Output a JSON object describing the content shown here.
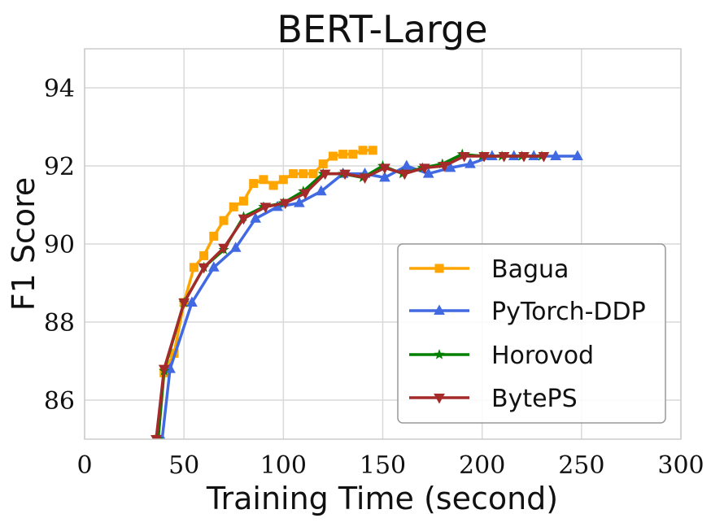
{
  "chart_data": {
    "type": "line",
    "title": "BERT-Large",
    "xlabel": "Training Time (second)",
    "ylabel": "F1 Score",
    "xlim": [
      0,
      300
    ],
    "ylim": [
      85,
      95
    ],
    "xticks": [
      0,
      50,
      100,
      150,
      200,
      250,
      300
    ],
    "yticks": [
      86,
      88,
      90,
      92,
      94
    ],
    "grid": true,
    "legend_position": "lower-right",
    "series": [
      {
        "name": "Bagua",
        "color": "#FFA500",
        "marker": "square",
        "x": [
          37,
          40,
          45,
          50,
          55,
          60,
          65,
          70,
          75,
          80,
          85,
          90,
          95,
          100,
          105,
          110,
          115,
          120,
          125,
          130,
          135,
          140,
          145
        ],
        "y": [
          85.0,
          86.7,
          87.2,
          88.5,
          89.4,
          89.7,
          90.2,
          90.6,
          90.95,
          91.1,
          91.55,
          91.65,
          91.5,
          91.65,
          91.8,
          91.8,
          91.8,
          92.05,
          92.25,
          92.3,
          92.3,
          92.4,
          92.4
        ]
      },
      {
        "name": "PyTorch-DDP",
        "color": "#4169E1",
        "marker": "triangle-up",
        "x": [
          39,
          43,
          54,
          65,
          76,
          86,
          97,
          108,
          119,
          130,
          141,
          151,
          162,
          173,
          184,
          194,
          205,
          216,
          226,
          237,
          248
        ],
        "y": [
          85.0,
          86.8,
          88.5,
          89.4,
          89.9,
          90.65,
          90.95,
          91.05,
          91.35,
          91.8,
          91.8,
          91.7,
          92.0,
          91.8,
          91.95,
          92.05,
          92.25,
          92.25,
          92.25,
          92.25,
          92.25
        ]
      },
      {
        "name": "Horovod",
        "color": "#008000",
        "marker": "star",
        "x": [
          37,
          40,
          50,
          60,
          70,
          80,
          90,
          100,
          110,
          120,
          130,
          140,
          150,
          160,
          170,
          180,
          190,
          200,
          210,
          220,
          230
        ],
        "y": [
          85.0,
          86.75,
          88.5,
          89.4,
          89.85,
          90.7,
          90.95,
          91.05,
          91.35,
          91.8,
          91.8,
          91.7,
          92.0,
          91.8,
          91.95,
          92.05,
          92.3,
          92.25,
          92.25,
          92.25,
          92.25
        ]
      },
      {
        "name": "BytePS",
        "color": "#A52A2A",
        "marker": "triangle-down",
        "x": [
          36,
          40,
          50,
          60,
          70,
          80,
          91,
          101,
          111,
          121,
          131,
          141,
          151,
          161,
          171,
          181,
          191,
          201,
          211,
          221,
          231
        ],
        "y": [
          85.0,
          86.8,
          88.5,
          89.4,
          89.9,
          90.65,
          90.95,
          91.05,
          91.3,
          91.8,
          91.8,
          91.7,
          91.95,
          91.8,
          91.95,
          92.0,
          92.25,
          92.25,
          92.25,
          92.25,
          92.25
        ]
      }
    ]
  }
}
